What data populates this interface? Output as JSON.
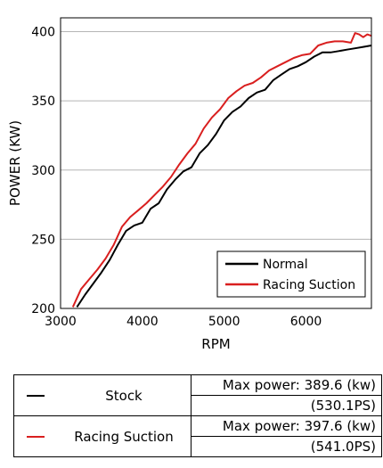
{
  "chart_data": {
    "type": "line",
    "xlabel": "RPM",
    "ylabel": "POWER (KW)",
    "xlim": [
      3000,
      6800
    ],
    "ylim": [
      200,
      410
    ],
    "x_ticks": [
      "3000",
      "4000",
      "5000",
      "6000"
    ],
    "y_ticks": [
      "200",
      "250",
      "300",
      "350",
      "400"
    ],
    "grid": "horizontal",
    "legend_position": "bottom-right",
    "series": [
      {
        "name": "Normal",
        "color": "#000000",
        "x": [
          3200,
          3300,
          3400,
          3500,
          3600,
          3700,
          3800,
          3900,
          4000,
          4100,
          4200,
          4300,
          4400,
          4500,
          4600,
          4700,
          4800,
          4900,
          5000,
          5100,
          5200,
          5300,
          5400,
          5500,
          5600,
          5700,
          5800,
          5900,
          6000,
          6100,
          6200,
          6300,
          6400,
          6500,
          6600,
          6700,
          6800
        ],
        "y": [
          201,
          210,
          218,
          226,
          235,
          246,
          256,
          260,
          262,
          272,
          276,
          286,
          293,
          299,
          302,
          312,
          318,
          326,
          336,
          342,
          346,
          352,
          356,
          358,
          365,
          369,
          373,
          375,
          378,
          382,
          385,
          385,
          386,
          387,
          388,
          389,
          390
        ]
      },
      {
        "name": "Racing Suction",
        "color": "#d91f1f",
        "x": [
          3150,
          3250,
          3350,
          3450,
          3550,
          3650,
          3750,
          3850,
          3950,
          4050,
          4150,
          4250,
          4350,
          4450,
          4550,
          4650,
          4750,
          4850,
          4950,
          5050,
          5150,
          5250,
          5350,
          5450,
          5550,
          5650,
          5750,
          5850,
          5950,
          6050,
          6150,
          6250,
          6350,
          6450,
          6550,
          6600,
          6650,
          6700,
          6750,
          6800
        ],
        "y": [
          201,
          214,
          221,
          228,
          236,
          246,
          259,
          266,
          271,
          276,
          282,
          288,
          295,
          304,
          312,
          319,
          330,
          338,
          344,
          352,
          357,
          361,
          363,
          367,
          372,
          375,
          378,
          381,
          383,
          384,
          390,
          392,
          393,
          393,
          392,
          399,
          398,
          396,
          398,
          397
        ]
      }
    ]
  },
  "table": {
    "rows": [
      {
        "name": "Stock",
        "color": "#000000",
        "max_power": "Max power: 389.6 (kw)",
        "ps": "(530.1PS)"
      },
      {
        "name": "Racing Suction",
        "color": "#d91f1f",
        "max_power": "Max power: 397.6 (kw)",
        "ps": "(541.0PS)"
      }
    ]
  }
}
